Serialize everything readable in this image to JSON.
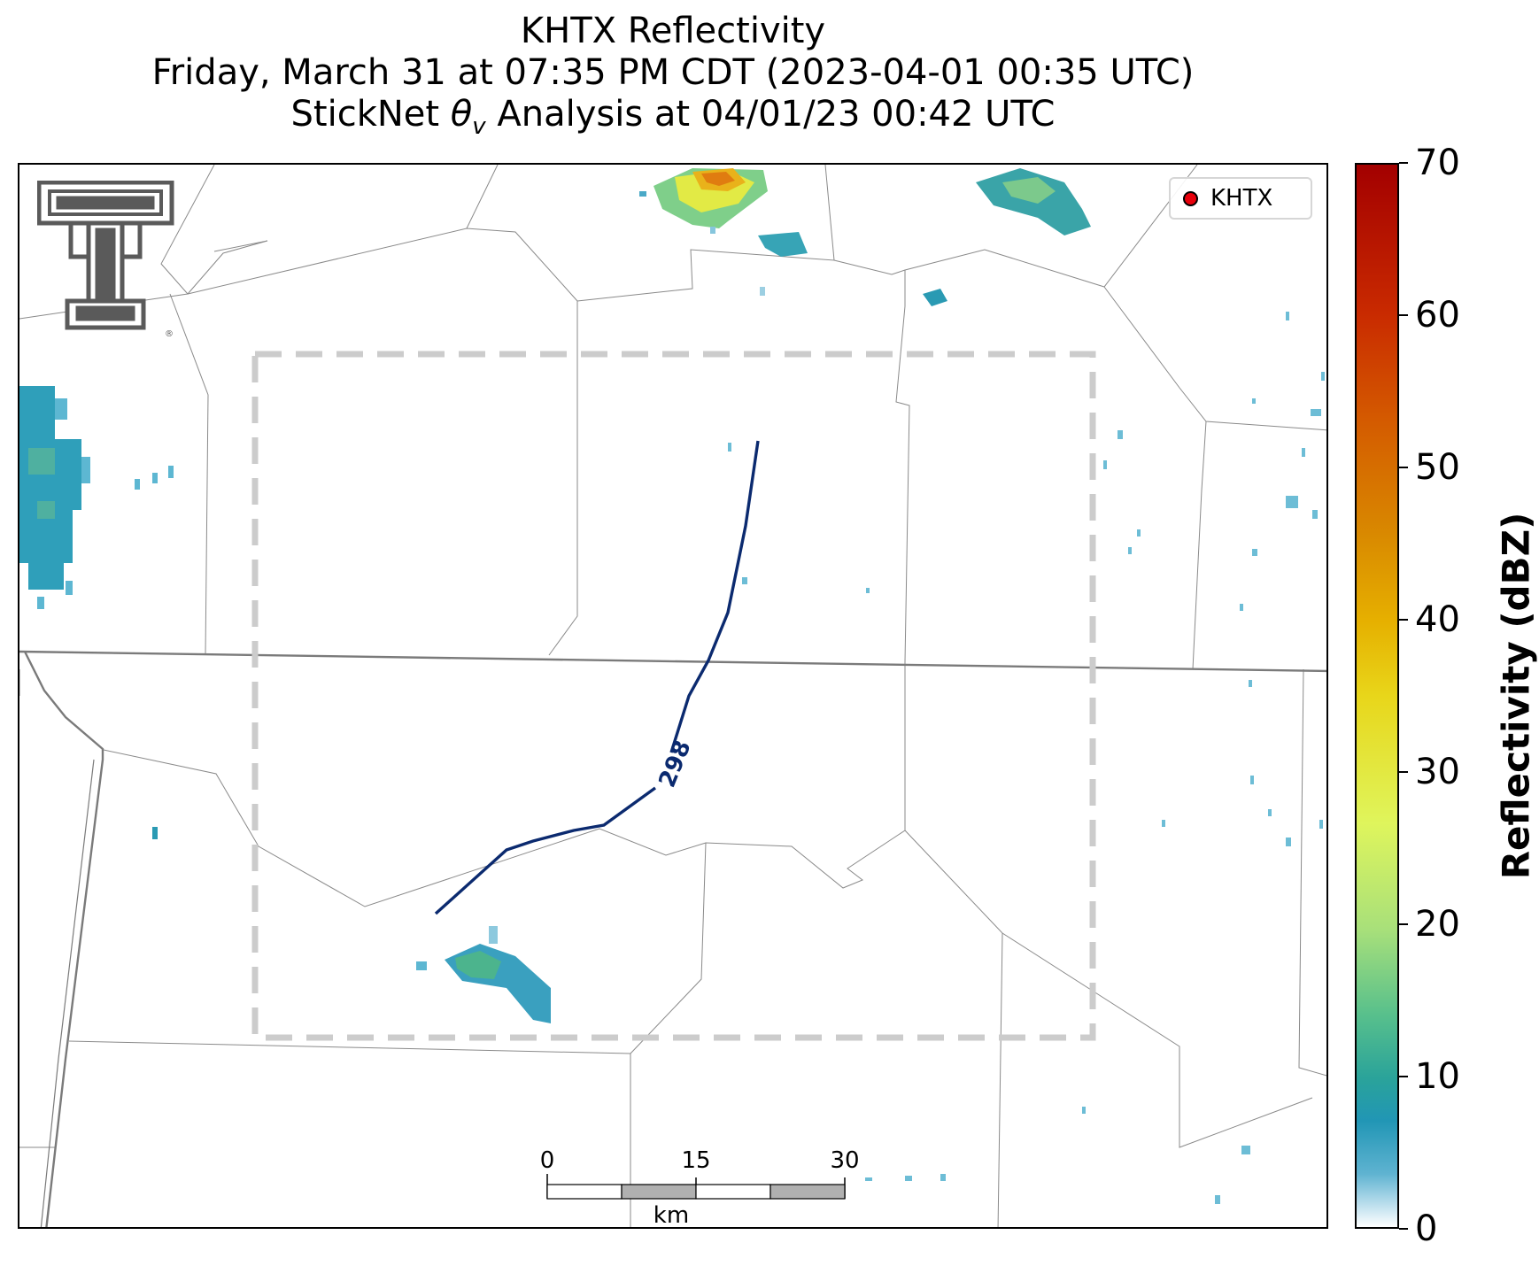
{
  "title": {
    "line1": "KHTX Reflectivity",
    "line2": "Friday, March 31 at 07:35 PM CDT (2023-04-01 00:35 UTC)",
    "line3_pre": "StickNet ",
    "line3_theta": "θ",
    "line3_sub": "v",
    "line3_post": " Analysis at 04/01/23 00:42 UTC"
  },
  "legend": {
    "label": "KHTX",
    "marker_color": "#e8000b"
  },
  "logo": {
    "name": "texas-tech-double-t-logo",
    "registered_mark": "®"
  },
  "contour": {
    "label": "298",
    "color": "#0b2a6f"
  },
  "analysis_box": {
    "style": "dashed",
    "color": "#cccccc"
  },
  "scalebar": {
    "ticks": [
      "0",
      "15",
      "30"
    ],
    "unit": "km"
  },
  "colorbar": {
    "title": "Reflectivity (dBZ)",
    "min": 0,
    "max": 70,
    "ticks": [
      "0",
      "10",
      "20",
      "30",
      "40",
      "50",
      "60",
      "70"
    ]
  }
}
